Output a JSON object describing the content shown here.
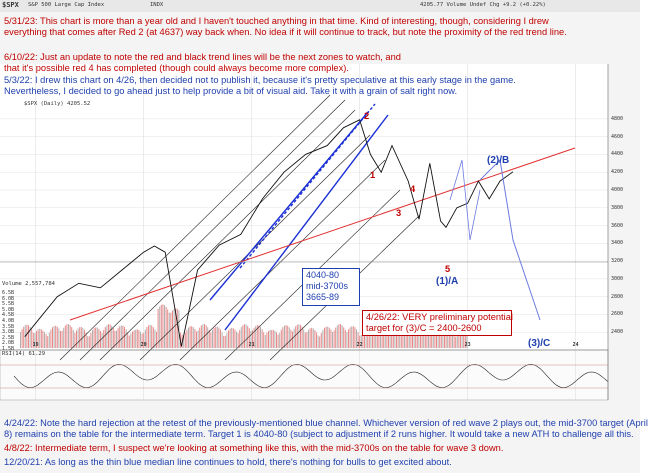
{
  "header": {
    "symbol": "$SPX",
    "name": "S&P 500 Large Cap Index",
    "exchange": "INDX",
    "quote": "4205.77 Volume Undef Chg +9.2 (+0.22%)"
  },
  "panels": {
    "price_legend": "$SPX (Daily) 4205.52",
    "volume_legend": "Volume 2,557,784",
    "rsi_legend": "RSI(14) 61.29"
  },
  "y_axis": [
    "4800",
    "4600",
    "4400",
    "4200",
    "4000",
    "3800",
    "3600",
    "3400",
    "3200",
    "3000",
    "2800",
    "2600",
    "2400"
  ],
  "x_axis": [
    "19",
    "20",
    "21",
    "22",
    "23",
    "24"
  ],
  "volume_axis": [
    "6.5B",
    "6.0B",
    "5.5B",
    "5.0B",
    "4.5B",
    "4.0B",
    "3.5B",
    "3.0B",
    "2.5B",
    "2.0B",
    "1.5B"
  ],
  "notes": {
    "n1": "5/31/23:  This chart is more than a year old and I haven't touched anything in that time.  Kind of interesting, though, considering I drew",
    "n1b": "everything that comes after Red 2 (at 4637) way back when.  No idea if it will continue to track, but note the proximity of the red trend line.",
    "n2": "6/10/22:  Just an update to note the red and black trend lines will be the next zones to watch, and",
    "n2b": "that it's possible red 4 has completed (though could always become more complex).",
    "n3": "5/3/22:  I drew this chart on 4/26, then decided not to publish it, because it's pretty speculative at this early stage in the game.",
    "n3b": "Nevertheless, I decided to go ahead just to help provide a bit of visual aid.  Take it with a grain of salt right now.",
    "n4": "4/24/22:  Note the hard rejection at the retest of the previously-mentioned blue channel.  Whichever version of red wave 2 plays out, the mid-3700 target (April",
    "n4b": "8) remains on the table for the intermediate term.  Target 1 is 4040-80 (subject to adjustment if 2 runs higher.  It would take a new ATH to challenge all this.",
    "n5": "4/8/22:  Intermediate term, I suspect we're looking at something like this, with the mid-3700s on the table for wave 3 down.",
    "n6": "12/20/21:  As long as the thin blue median line continues to hold, there's nothing for bulls to get excited about."
  },
  "targets_box": {
    "line1": "4040-80",
    "line2": "mid-3700s",
    "line3": "3665-89"
  },
  "potential_box": {
    "line1": "4/26/22: VERY preliminary potential",
    "line2": "target for (3)/C = 2400-2600"
  },
  "wave_labels": {
    "red_2": "2",
    "red_1": "1",
    "red_3": "3",
    "red_4": "4",
    "red_5": "5",
    "blue_2b": "(2)/B",
    "blue_1a": "(1)/A",
    "blue_3c": "(3)/C"
  },
  "colors": {
    "red_trend": "#e23030",
    "blue_channel": "#1a2fd6",
    "black_lines": "#222222",
    "price": "#111111",
    "note_red": "#c00000",
    "note_blue": "#1f3fae"
  },
  "chart_data": {
    "type": "line",
    "title": "$SPX S&P 500 Large Cap Index",
    "ylabel": "",
    "xlabel": "",
    "ylim": [
      2200,
      4900
    ],
    "x": [
      2018.9,
      2019.0,
      2019.2,
      2019.4,
      2019.6,
      2019.8,
      2020.0,
      2020.1,
      2020.2,
      2020.35,
      2020.5,
      2020.7,
      2020.9,
      2021.1,
      2021.3,
      2021.5,
      2021.7,
      2021.85,
      2022.0,
      2022.1,
      2022.2,
      2022.3,
      2022.45,
      2022.55,
      2022.65,
      2022.75,
      2022.8,
      2022.9,
      2023.0,
      2023.1,
      2023.2,
      2023.3,
      2023.42
    ],
    "values": [
      2350,
      2500,
      2800,
      2950,
      2900,
      3100,
      3300,
      3370,
      3300,
      2240,
      3100,
      3380,
      3500,
      3900,
      4200,
      4400,
      4500,
      4700,
      4790,
      4400,
      4200,
      4500,
      4100,
      3670,
      4300,
      3650,
      3580,
      3800,
      3850,
      4100,
      3900,
      4100,
      4205
    ]
  }
}
